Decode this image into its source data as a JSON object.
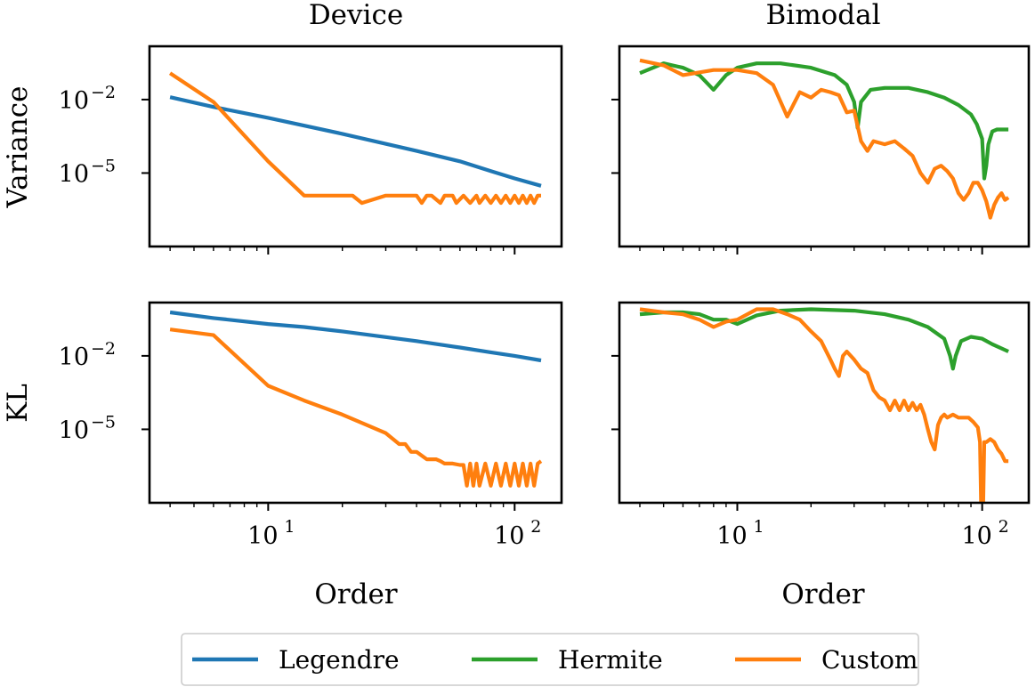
{
  "legend": [
    {
      "name": "Legendre",
      "color": "#1f77b4"
    },
    {
      "name": "Hermite",
      "color": "#2ca02c"
    },
    {
      "name": "Custom",
      "color": "#ff7f0e"
    }
  ],
  "chart_data": [
    {
      "type": "line",
      "column_title": "Device",
      "ylabel": "Variance",
      "xlabel": "",
      "xscale": "log",
      "yscale": "log",
      "xlim": [
        3.3,
        155
      ],
      "ylim": [
        1e-08,
        1.5
      ],
      "x_ticks": [
        {
          "value": 10,
          "base": "10",
          "exp": "1"
        },
        {
          "value": 100,
          "base": "10",
          "exp": "2"
        }
      ],
      "y_ticks": [
        {
          "value": 0.01,
          "base": "10",
          "exp": "−2"
        },
        {
          "value": 1e-05,
          "base": "10",
          "exp": "−5"
        }
      ],
      "series": [
        {
          "name": "Legendre",
          "x": [
            4,
            6,
            10,
            20,
            40,
            60,
            80,
            100,
            128
          ],
          "y": [
            0.0125,
            0.005,
            0.0018,
            0.0004,
            8e-05,
            3e-05,
            1.2e-05,
            6e-06,
            3e-06
          ]
        },
        {
          "name": "Custom",
          "x": [
            4,
            6,
            10,
            14,
            18,
            22,
            24,
            30,
            32,
            40,
            42,
            44,
            46,
            50,
            52,
            56,
            58,
            62,
            66,
            70,
            72,
            76,
            80,
            84,
            88,
            92,
            96,
            100,
            104,
            108,
            112,
            116,
            120,
            124,
            128
          ],
          "y": [
            0.12,
            0.008,
            3e-05,
            1.2e-06,
            1.2e-06,
            1.2e-06,
            6e-07,
            1.2e-06,
            1.2e-06,
            1.2e-06,
            6e-07,
            1.2e-06,
            1.2e-06,
            6e-07,
            1.2e-06,
            1.2e-06,
            6e-07,
            1.2e-06,
            6e-07,
            1.2e-06,
            6e-07,
            1.2e-06,
            6e-07,
            1.2e-06,
            6e-07,
            1.2e-06,
            6e-07,
            1.2e-06,
            6e-07,
            1.2e-06,
            6e-07,
            1.2e-06,
            6e-07,
            1.2e-06,
            1.2e-06
          ]
        }
      ]
    },
    {
      "type": "line",
      "column_title": "Bimodal",
      "ylabel": "",
      "xlabel": "",
      "xscale": "log",
      "yscale": "log",
      "xlim": [
        3.3,
        155
      ],
      "ylim": [
        1e-08,
        1.5
      ],
      "x_ticks": [
        {
          "value": 10,
          "base": "10",
          "exp": "1"
        },
        {
          "value": 100,
          "base": "10",
          "exp": "2"
        }
      ],
      "y_ticks": [
        {
          "value": 0.01,
          "base": "10",
          "exp": "−2"
        },
        {
          "value": 1e-05,
          "base": "10",
          "exp": "−5"
        }
      ],
      "series": [
        {
          "name": "Hermite",
          "x": [
            4,
            5,
            6,
            7,
            8,
            9,
            10,
            12,
            15,
            20,
            25,
            28,
            30,
            31,
            32,
            35,
            40,
            50,
            60,
            70,
            80,
            90,
            95,
            100,
            102,
            104,
            106,
            110,
            115,
            120,
            128
          ],
          "y": [
            0.12,
            0.3,
            0.2,
            0.1,
            0.025,
            0.1,
            0.2,
            0.3,
            0.3,
            0.2,
            0.1,
            0.04,
            0.008,
            0.0007,
            0.008,
            0.025,
            0.03,
            0.03,
            0.02,
            0.012,
            0.006,
            0.0025,
            0.001,
            0.00025,
            6e-06,
            2e-05,
            0.00015,
            0.0005,
            0.0006,
            0.0006,
            0.0006
          ]
        },
        {
          "name": "Custom",
          "x": [
            4,
            5,
            6,
            8,
            10,
            12,
            14,
            16,
            18,
            20,
            22,
            24,
            26,
            28,
            30,
            32,
            34,
            36,
            40,
            44,
            48,
            52,
            56,
            60,
            64,
            68,
            72,
            76,
            80,
            84,
            88,
            92,
            96,
            100,
            104,
            108,
            112,
            116,
            120,
            124,
            128
          ],
          "y": [
            0.4,
            0.25,
            0.1,
            0.16,
            0.16,
            0.12,
            0.04,
            0.002,
            0.02,
            0.012,
            0.025,
            0.02,
            0.015,
            0.003,
            0.0035,
            0.0002,
            8e-05,
            0.0002,
            0.00015,
            0.0002,
            0.0001,
            5e-05,
            1e-05,
            4e-06,
            1.5e-05,
            2e-05,
            1.2e-05,
            6e-06,
            1.5e-06,
            8e-07,
            1.5e-06,
            4e-06,
            4e-06,
            2e-06,
            7e-07,
            1.5e-07,
            5e-07,
            1e-06,
            1.5e-06,
            8e-07,
            1e-06
          ]
        }
      ]
    },
    {
      "type": "line",
      "column_title": "",
      "ylabel": "KL",
      "xlabel": "Order",
      "xscale": "log",
      "yscale": "log",
      "xlim": [
        3.3,
        155
      ],
      "ylim": [
        1e-08,
        1.5
      ],
      "x_ticks": [
        {
          "value": 10,
          "base": "10",
          "exp": "1"
        },
        {
          "value": 100,
          "base": "10",
          "exp": "2"
        }
      ],
      "y_ticks": [
        {
          "value": 0.01,
          "base": "10",
          "exp": "−2"
        },
        {
          "value": 1e-05,
          "base": "10",
          "exp": "−5"
        }
      ],
      "series": [
        {
          "name": "Legendre",
          "x": [
            4,
            6,
            10,
            14,
            20,
            40,
            60,
            80,
            100,
            128
          ],
          "y": [
            0.6,
            0.35,
            0.2,
            0.15,
            0.1,
            0.04,
            0.022,
            0.014,
            0.01,
            0.0065
          ]
        },
        {
          "name": "Custom",
          "x": [
            4,
            6,
            10,
            14,
            20,
            30,
            34,
            36,
            38,
            40,
            44,
            48,
            50,
            52,
            56,
            60,
            62,
            64,
            66,
            68,
            70,
            72,
            76,
            80,
            84,
            88,
            92,
            96,
            100,
            104,
            108,
            112,
            116,
            120,
            124,
            128
          ],
          "y": [
            0.12,
            0.07,
            0.0006,
            0.00015,
            4e-05,
            7e-06,
            2.5e-06,
            2.5e-06,
            1.2e-06,
            1.2e-06,
            6e-07,
            6e-07,
            5e-07,
            4e-07,
            4e-07,
            3.5e-07,
            3.5e-07,
            5e-08,
            4e-07,
            5e-08,
            4e-07,
            5e-08,
            4e-07,
            5e-08,
            4e-07,
            5e-08,
            4e-07,
            5e-08,
            4e-07,
            5e-08,
            4e-07,
            5e-08,
            4e-07,
            5e-08,
            4e-07,
            5e-07
          ]
        }
      ]
    },
    {
      "type": "line",
      "column_title": "",
      "ylabel": "",
      "xlabel": "Order",
      "xscale": "log",
      "yscale": "log",
      "xlim": [
        3.3,
        155
      ],
      "ylim": [
        1e-08,
        1.5
      ],
      "x_ticks": [
        {
          "value": 10,
          "base": "10",
          "exp": "1"
        },
        {
          "value": 100,
          "base": "10",
          "exp": "2"
        }
      ],
      "y_ticks": [
        {
          "value": 0.01,
          "base": "10",
          "exp": "−2"
        },
        {
          "value": 1e-05,
          "base": "10",
          "exp": "−5"
        }
      ],
      "series": [
        {
          "name": "Hermite",
          "x": [
            4,
            5,
            6,
            7,
            8,
            9,
            10,
            12,
            15,
            20,
            30,
            40,
            50,
            60,
            70,
            74,
            76,
            78,
            82,
            90,
            100,
            110,
            128
          ],
          "y": [
            0.5,
            0.6,
            0.6,
            0.5,
            0.3,
            0.3,
            0.2,
            0.45,
            0.7,
            0.8,
            0.7,
            0.5,
            0.3,
            0.15,
            0.05,
            0.01,
            0.003,
            0.01,
            0.04,
            0.06,
            0.05,
            0.03,
            0.015
          ]
        },
        {
          "name": "Custom",
          "x": [
            4,
            5,
            6,
            7,
            8,
            9,
            10,
            12,
            14,
            16,
            18,
            20,
            22,
            24,
            25,
            26,
            27,
            28,
            30,
            32,
            34,
            36,
            38,
            40,
            42,
            44,
            46,
            48,
            50,
            52,
            54,
            56,
            58,
            60,
            62,
            64,
            66,
            68,
            70,
            72,
            76,
            80,
            84,
            88,
            92,
            96,
            98,
            99,
            100,
            101,
            102,
            104,
            108,
            112,
            116,
            120,
            124,
            128
          ],
          "y": [
            0.8,
            0.6,
            0.5,
            0.3,
            0.15,
            0.25,
            0.3,
            0.8,
            0.8,
            0.5,
            0.3,
            0.1,
            0.04,
            0.007,
            0.003,
            0.0015,
            0.01,
            0.015,
            0.007,
            0.003,
            0.002,
            0.0004,
            0.0002,
            0.00015,
            6e-05,
            0.00015,
            6e-05,
            0.00015,
            6e-05,
            0.00012,
            6e-05,
            0.0001,
            4e-05,
            1e-05,
            3e-06,
            1.5e-06,
            1.5e-05,
            3e-05,
            4e-05,
            3e-05,
            4e-05,
            3e-05,
            3e-05,
            3e-05,
            2e-05,
            1.2e-05,
            3e-06,
            1e-08,
            1e-08,
            1e-08,
            3e-06,
            3e-06,
            4e-06,
            3e-06,
            1.5e-06,
            1e-06,
            5e-07,
            5e-07
          ]
        }
      ]
    }
  ]
}
